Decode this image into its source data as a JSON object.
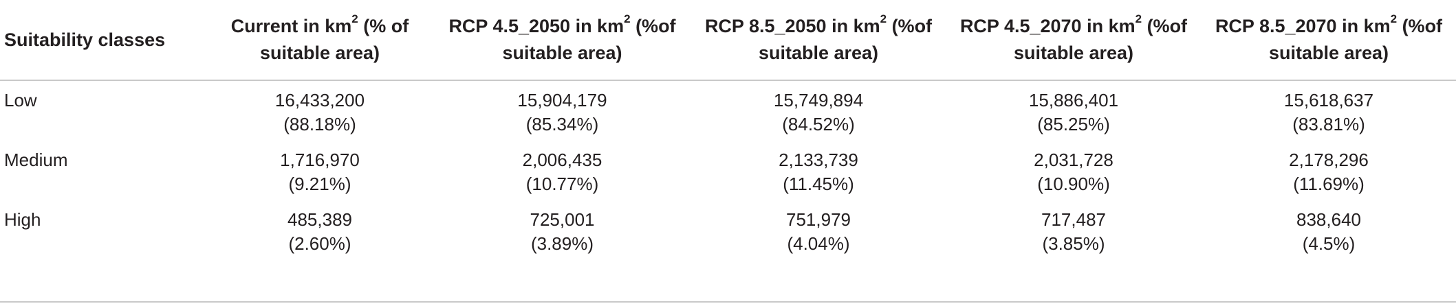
{
  "table": {
    "headers": [
      {
        "main": "Suitability classes",
        "sup": "",
        "tail": ""
      },
      {
        "main": "Current in km",
        "sup": "2",
        "tail": " (% of suitable area)"
      },
      {
        "main": "RCP 4.5_2050 in km",
        "sup": "2",
        "tail": " (%of suitable area)"
      },
      {
        "main": "RCP 8.5_2050 in km",
        "sup": "2",
        "tail": " (%of suitable area)"
      },
      {
        "main": "RCP 4.5_2070 in km",
        "sup": "2",
        "tail": " (%of suitable area)"
      },
      {
        "main": "RCP 8.5_2070 in km",
        "sup": "2",
        "tail": " (%of suitable area)"
      }
    ],
    "rows": [
      {
        "label": "Low",
        "cells": [
          {
            "value": "16,433,200",
            "pct": "(88.18%)"
          },
          {
            "value": "15,904,179",
            "pct": "(85.34%)"
          },
          {
            "value": "15,749,894",
            "pct": "(84.52%)"
          },
          {
            "value": "15,886,401",
            "pct": "(85.25%)"
          },
          {
            "value": "15,618,637",
            "pct": "(83.81%)"
          }
        ]
      },
      {
        "label": "Medium",
        "cells": [
          {
            "value": "1,716,970",
            "pct": "(9.21%)"
          },
          {
            "value": "2,006,435",
            "pct": "(10.77%)"
          },
          {
            "value": "2,133,739",
            "pct": "(11.45%)"
          },
          {
            "value": "2,031,728",
            "pct": "(10.90%)"
          },
          {
            "value": "2,178,296",
            "pct": "(11.69%)"
          }
        ]
      },
      {
        "label": "High",
        "cells": [
          {
            "value": "485,389",
            "pct": "(2.60%)"
          },
          {
            "value": "725,001",
            "pct": "(3.89%)"
          },
          {
            "value": "751,979",
            "pct": "(4.04%)"
          },
          {
            "value": "717,487",
            "pct": "(3.85%)"
          },
          {
            "value": "838,640",
            "pct": "(4.5%)"
          }
        ]
      }
    ]
  }
}
